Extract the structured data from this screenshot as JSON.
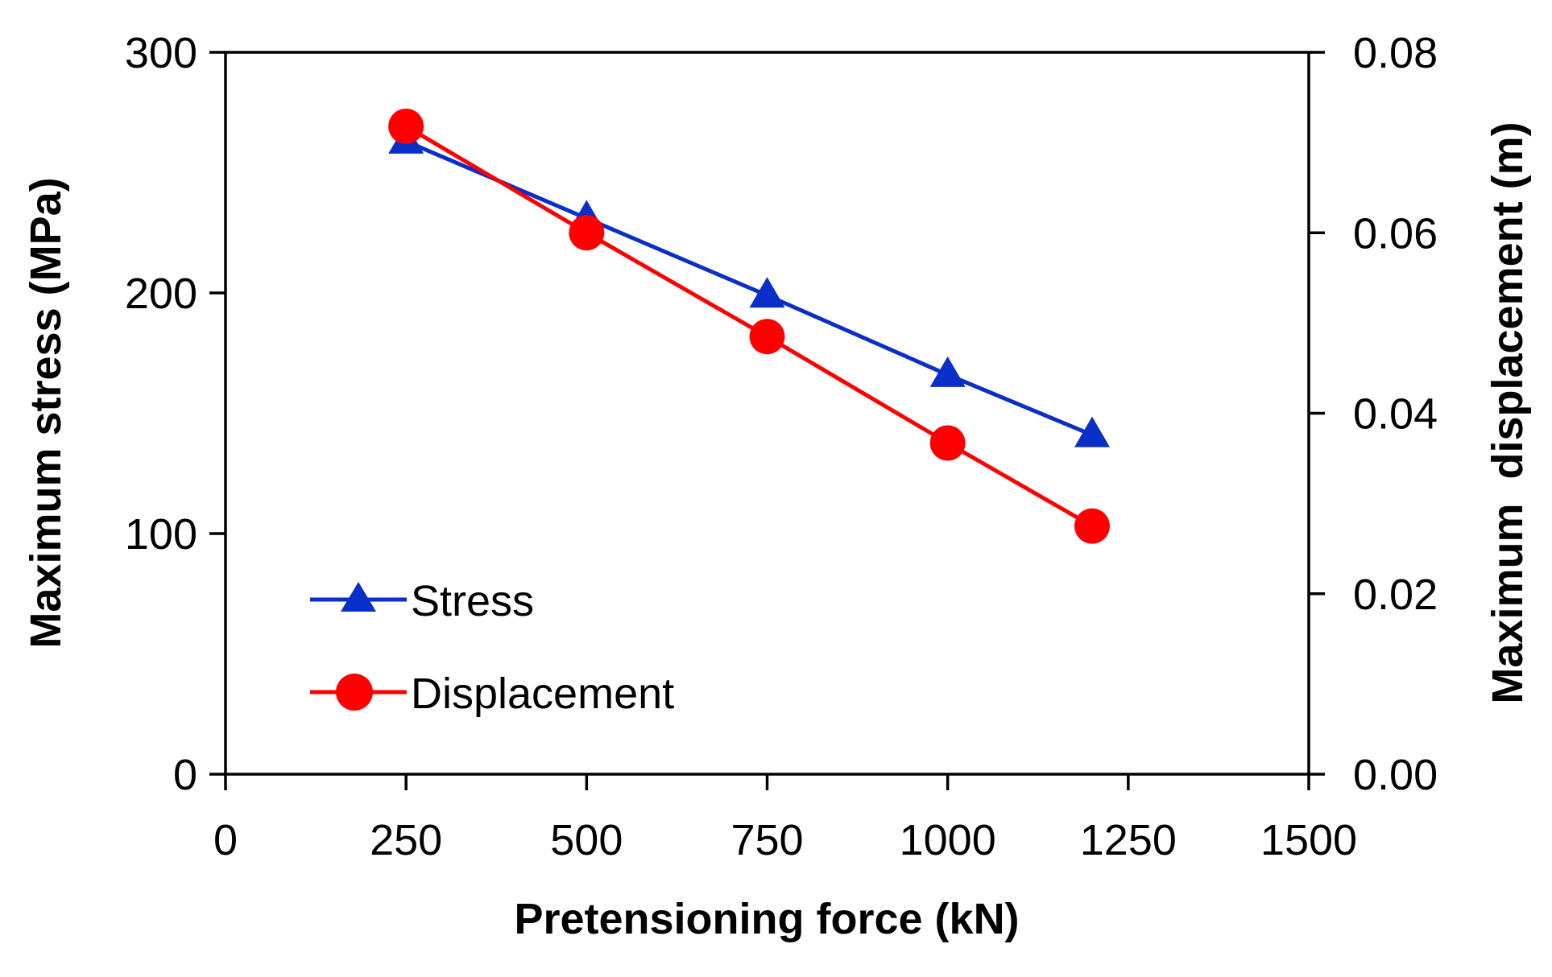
{
  "chart_data": {
    "type": "line",
    "title": "",
    "xlabel": "Pretensioning force (kN)",
    "ylabel": "Maximum stress (MPa)",
    "y2label": "Maximum  displacement (m)",
    "xlim": [
      0,
      1500
    ],
    "ylim": [
      0,
      300
    ],
    "y2lim": [
      0,
      0.08
    ],
    "x_ticks": [
      "0",
      "250",
      "500",
      "750",
      "1000",
      "1250",
      "1500"
    ],
    "y_ticks": [
      "0",
      "100",
      "200",
      "300"
    ],
    "y2_ticks": [
      "0.00",
      "0.02",
      "0.04",
      "0.06",
      "0.08"
    ],
    "grid": false,
    "legend_position": "lower-left",
    "series": [
      {
        "name": "Stress",
        "axis": "left",
        "color": "#0a2ec8",
        "marker": "triangle",
        "x": [
          250,
          500,
          750,
          1000,
          1200
        ],
        "values": [
          263,
          231,
          199,
          166,
          141
        ]
      },
      {
        "name": "Displacement",
        "axis": "right",
        "color": "#ff0000",
        "marker": "circle",
        "x": [
          250,
          500,
          750,
          1000,
          1200
        ],
        "values": [
          0.0718,
          0.06,
          0.0485,
          0.0367,
          0.0275
        ]
      }
    ]
  }
}
